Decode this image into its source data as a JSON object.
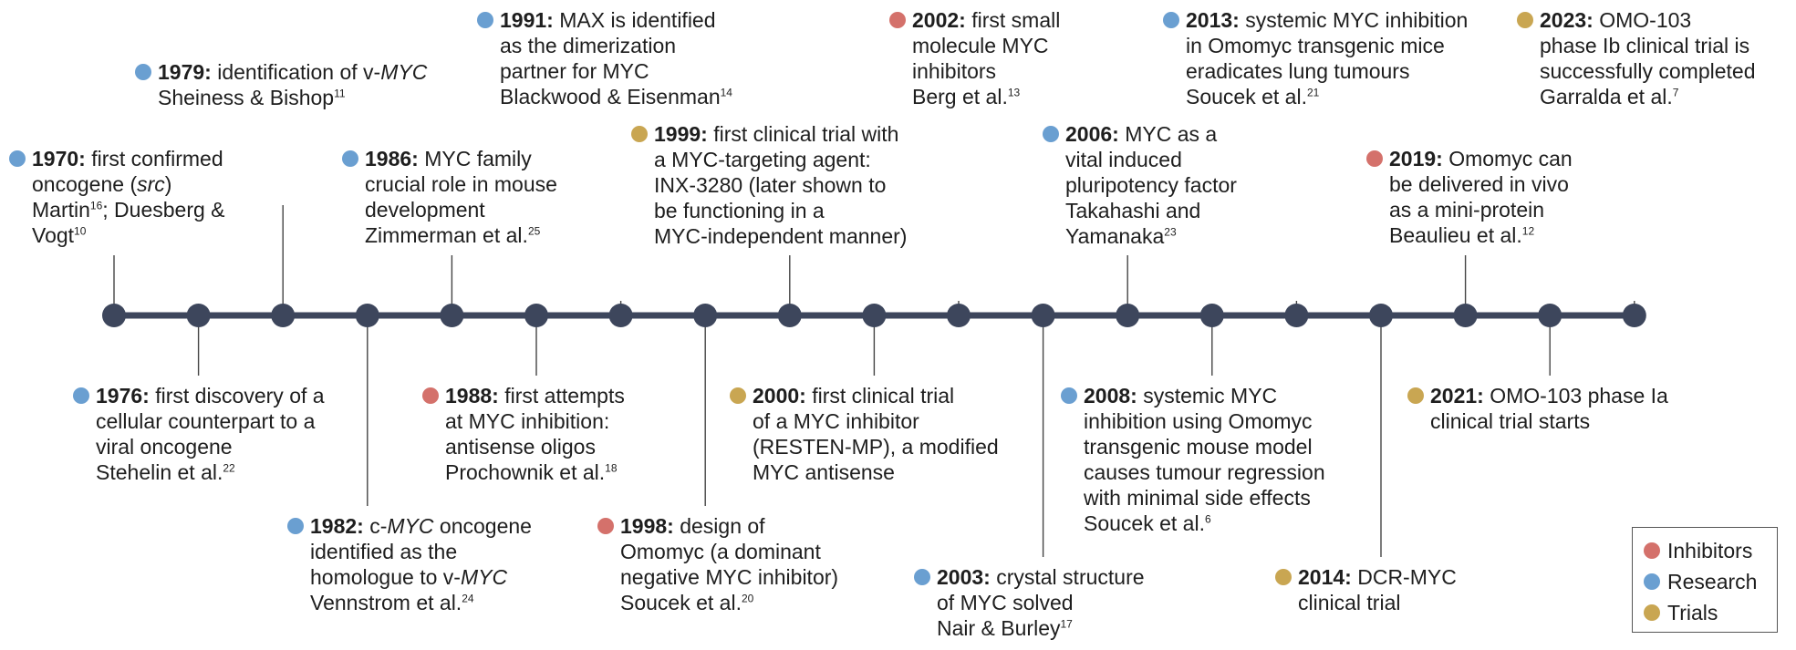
{
  "colors": {
    "inhibitors": "#d4716b",
    "research": "#6a9fd1",
    "trials": "#c9a652",
    "axis": "#3d465c"
  },
  "legend": {
    "items": [
      {
        "label": "Inhibitors",
        "category": "inhibitors"
      },
      {
        "label": "Research",
        "category": "research"
      },
      {
        "label": "Trials",
        "category": "trials"
      }
    ]
  },
  "events": [
    {
      "year": "1970:",
      "category": "research",
      "lines": [
        "first confirmed",
        "oncogene (src)",
        "Martin;16 Duesberg &",
        "Vogt10"
      ]
    },
    {
      "year": "1976:",
      "category": "research",
      "lines": [
        "first discovery of a",
        "cellular counterpart to a",
        "viral oncogene",
        "Stehelin et al.22"
      ]
    },
    {
      "year": "1979:",
      "category": "research",
      "lines": [
        "identification of v-MYC",
        "Sheiness & Bishop11"
      ]
    },
    {
      "year": "1982:",
      "category": "research",
      "lines": [
        "c-MYC oncogene",
        "identified as the",
        "homologue to v-MYC",
        "Vennstrom et al.24"
      ]
    },
    {
      "year": "1986:",
      "category": "research",
      "lines": [
        "MYC family",
        "crucial role in mouse",
        "development",
        "Zimmerman et al.25"
      ]
    },
    {
      "year": "1988:",
      "category": "inhibitors",
      "lines": [
        "first attempts",
        "at MYC inhibition:",
        "antisense oligos",
        "Prochownik et al.18"
      ]
    },
    {
      "year": "1991:",
      "category": "research",
      "lines": [
        "MAX is identified",
        "as the dimerization",
        "partner for MYC",
        "Blackwood & Eisenman14"
      ]
    },
    {
      "year": "1998:",
      "category": "inhibitors",
      "lines": [
        "design of",
        "Omomyc (a dominant",
        "negative MYC inhibitor)",
        "Soucek et al.20"
      ]
    },
    {
      "year": "1999:",
      "category": "trials",
      "lines": [
        "first clinical trial with",
        "a MYC-targeting agent:",
        "INX-3280 (later shown to",
        "be functioning in a",
        "MYC-independent manner)"
      ]
    },
    {
      "year": "2000:",
      "category": "trials",
      "lines": [
        "first clinical trial",
        "of a MYC inhibitor",
        "(RESTEN-MP), a modified",
        "MYC antisense"
      ]
    },
    {
      "year": "2002:",
      "category": "inhibitors",
      "lines": [
        "first small",
        "molecule MYC",
        "inhibitors",
        "Berg et al.13"
      ]
    },
    {
      "year": "2003:",
      "category": "research",
      "lines": [
        "crystal structure",
        "of MYC solved",
        "Nair & Burley17"
      ]
    },
    {
      "year": "2006:",
      "category": "research",
      "lines": [
        "MYC as a",
        "vital induced",
        "pluripotency factor",
        "Takahashi and",
        "Yamanaka23"
      ]
    },
    {
      "year": "2008:",
      "category": "research",
      "lines": [
        "systemic MYC",
        "inhibition using Omomyc",
        "transgenic mouse model",
        "causes tumour regression",
        "with minimal side effects",
        "Soucek et al.6"
      ]
    },
    {
      "year": "2013:",
      "category": "research",
      "lines": [
        "systemic MYC inhibition",
        "in Omomyc transgenic mice",
        "eradicates lung tumours",
        "Soucek et al.21"
      ]
    },
    {
      "year": "2014:",
      "category": "trials",
      "lines": [
        "DCR-MYC",
        "clinical trial"
      ]
    },
    {
      "year": "2019:",
      "category": "inhibitors",
      "lines": [
        "Omomyc can",
        "be delivered in vivo",
        "as a mini-protein",
        "Beaulieu et al.12"
      ]
    },
    {
      "year": "2021:",
      "category": "trials",
      "lines": [
        "OMO-103 phase Ia",
        "clinical trial starts"
      ]
    },
    {
      "year": "2023:",
      "category": "trials",
      "lines": [
        "OMO-103",
        "phase Ib clinical trial is",
        "successfully completed",
        "Garralda et al.7"
      ]
    }
  ]
}
